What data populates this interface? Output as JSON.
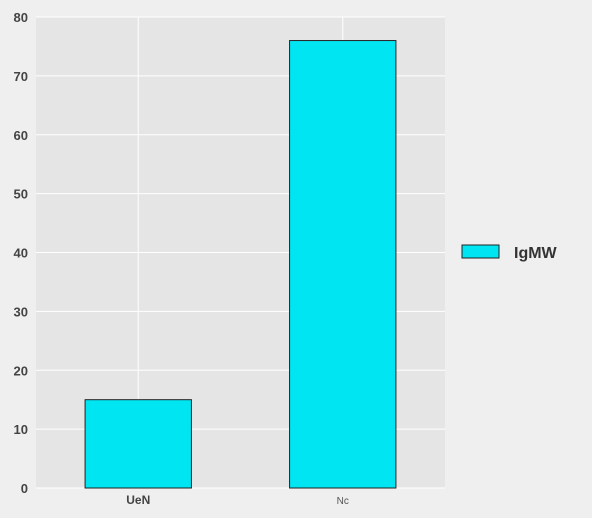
{
  "chart_data": {
    "type": "bar",
    "categories": [
      "UeN",
      "Nc"
    ],
    "series": [
      {
        "name": "IgMW",
        "values": [
          15,
          76
        ]
      }
    ],
    "ylim": [
      0,
      80
    ],
    "yticks": [
      0,
      10,
      20,
      30,
      40,
      50,
      60,
      70,
      80
    ],
    "grid": true,
    "legend": {
      "placement": "right"
    },
    "colors": {
      "bar_fill": "#00e5f2",
      "bar_edge": "#222222",
      "plot_bg": "#e5e5e5",
      "page_bg": "#efefef",
      "grid": "#ffffff"
    },
    "tick_styles": [
      "bold",
      "light"
    ]
  }
}
